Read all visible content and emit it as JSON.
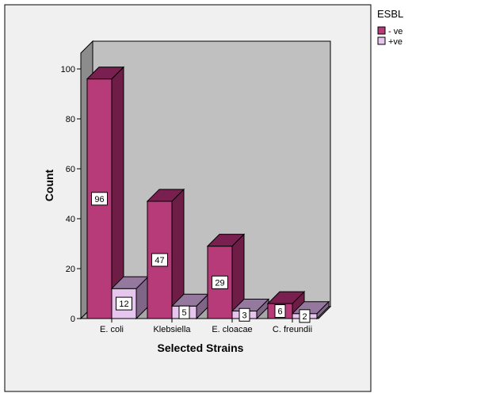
{
  "chart_data": {
    "type": "bar",
    "categories": [
      "E. coli",
      "Klebsiella",
      "E. cloacae",
      "C. freundii"
    ],
    "series": [
      {
        "name": "- ve",
        "values": [
          96,
          47,
          29,
          6
        ],
        "color": "#b83b79",
        "top_color": "#7a2050",
        "side_color": "#6e1e46"
      },
      {
        "name": "+ve",
        "values": [
          12,
          5,
          3,
          2
        ],
        "color": "#e6c5ee",
        "top_color": "#94789e",
        "side_color": "#7f6687"
      }
    ],
    "title": "",
    "xlabel": "Selected Strains",
    "ylabel": "Count",
    "ylim": [
      0,
      100
    ],
    "yticks": [
      0,
      20,
      40,
      60,
      80,
      100
    ],
    "legend": {
      "title": "ESBL",
      "position": "top-right"
    },
    "grid": false,
    "colors": {
      "back_wall": "#c0c0c0",
      "outer_background": "#f0f0f0",
      "side_wall": "#8c8c8c"
    }
  }
}
